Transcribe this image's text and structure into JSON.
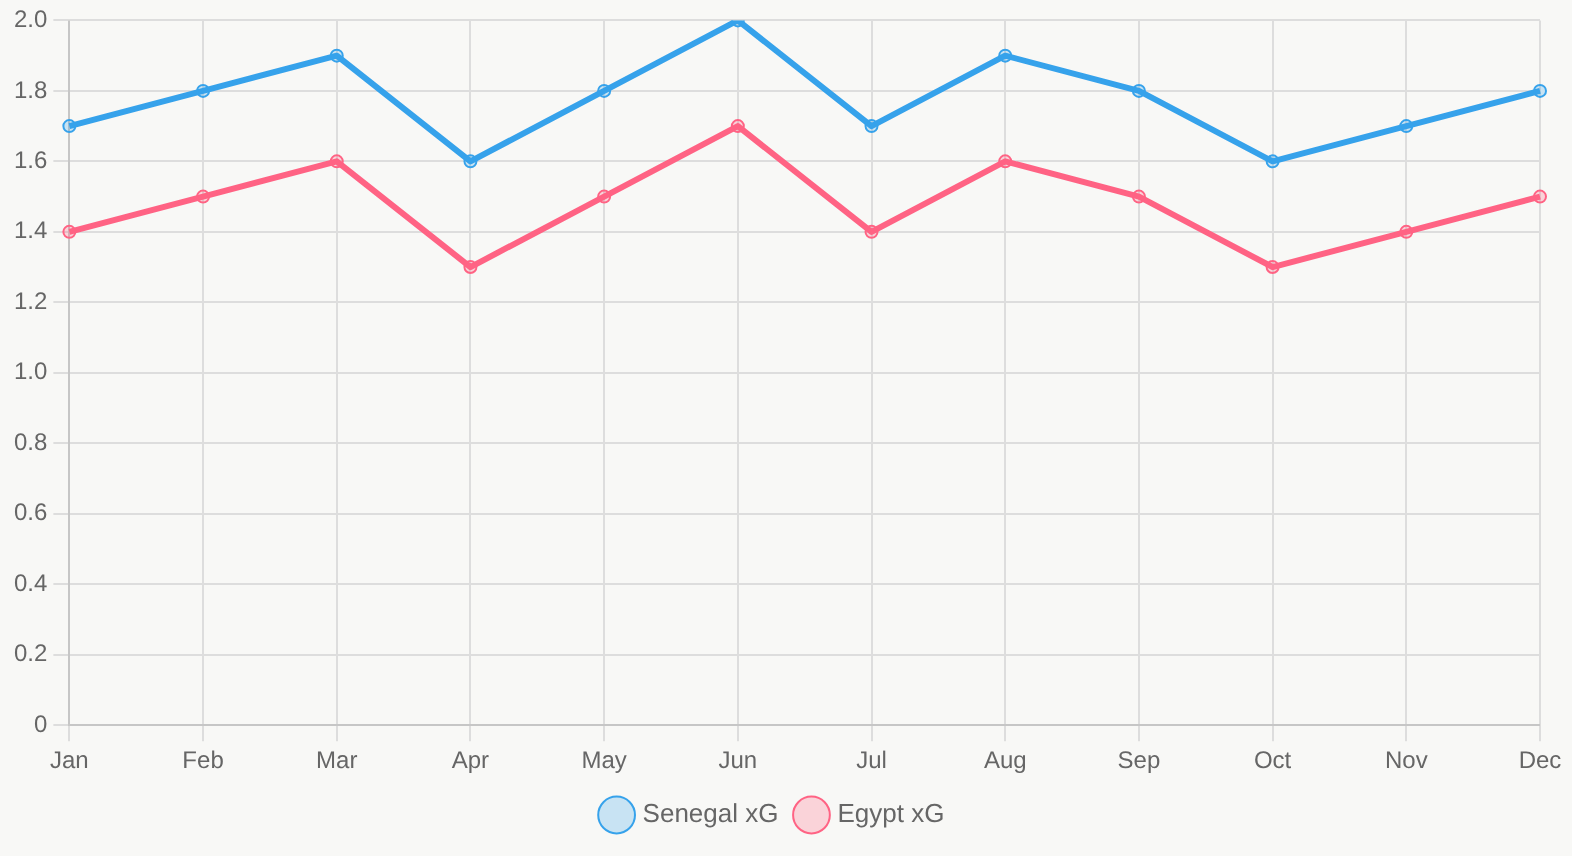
{
  "chart_data": {
    "type": "line",
    "categories": [
      "Jan",
      "Feb",
      "Mar",
      "Apr",
      "May",
      "Jun",
      "Jul",
      "Aug",
      "Sep",
      "Oct",
      "Nov",
      "Dec"
    ],
    "series": [
      {
        "name": "Senegal xG",
        "color": "#36a2eb",
        "values": [
          1.7,
          1.8,
          1.9,
          1.6,
          1.8,
          2.0,
          1.7,
          1.9,
          1.8,
          1.6,
          1.7,
          1.8
        ]
      },
      {
        "name": "Egypt xG",
        "color": "#ff6384",
        "values": [
          1.4,
          1.5,
          1.6,
          1.3,
          1.5,
          1.7,
          1.4,
          1.6,
          1.5,
          1.3,
          1.4,
          1.5
        ]
      }
    ],
    "ylim": [
      0,
      2
    ],
    "yticks": [
      0,
      0.2,
      0.4,
      0.6,
      0.8,
      {
        "value": 1,
        "label": "1.0"
      },
      1.2,
      1.4,
      1.6,
      1.8,
      {
        "value": 2,
        "label": "2.0"
      }
    ],
    "grid": true,
    "legend": "bottom",
    "marker": "circle",
    "line_style": "solid"
  }
}
